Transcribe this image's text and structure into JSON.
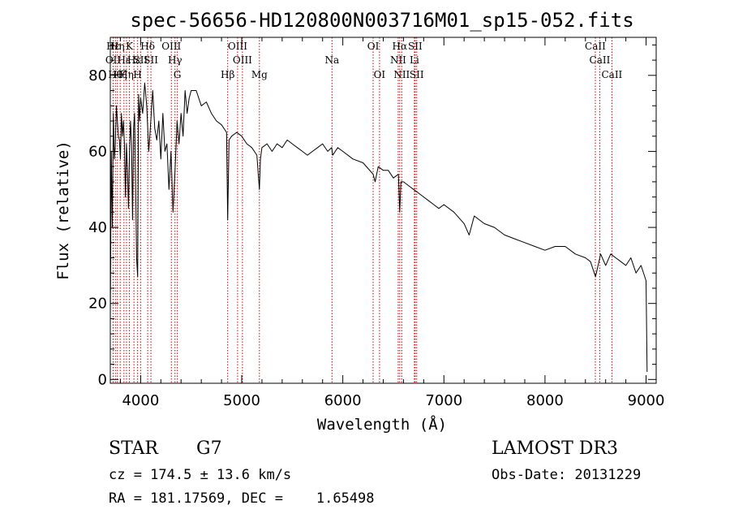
{
  "chart_data": {
    "type": "line",
    "title": "spec-56656-HD120800N003716M01_sp15-052.fits",
    "xlabel": "Wavelength (Å)",
    "ylabel": "Flux (relative)",
    "xlim": [
      3700,
      9100
    ],
    "ylim": [
      -1,
      90
    ],
    "x_ticks": [
      4000,
      5000,
      6000,
      7000,
      8000,
      9000
    ],
    "y_ticks": [
      0,
      20,
      40,
      60,
      80
    ],
    "x_minor_step": 200,
    "y_minor_step": 4,
    "grid": false,
    "series": [
      {
        "name": "flux",
        "x": [
          3700,
          3710,
          3720,
          3730,
          3740,
          3750,
          3760,
          3770,
          3780,
          3790,
          3800,
          3810,
          3820,
          3830,
          3840,
          3850,
          3860,
          3870,
          3880,
          3890,
          3900,
          3910,
          3920,
          3930,
          3940,
          3950,
          3960,
          3970,
          3980,
          3990,
          4000,
          4020,
          4040,
          4060,
          4080,
          4100,
          4120,
          4140,
          4160,
          4180,
          4200,
          4220,
          4240,
          4260,
          4280,
          4300,
          4320,
          4340,
          4360,
          4380,
          4400,
          4420,
          4440,
          4460,
          4480,
          4500,
          4550,
          4600,
          4650,
          4700,
          4750,
          4800,
          4850,
          4861,
          4875,
          4900,
          4950,
          5000,
          5050,
          5100,
          5150,
          5175,
          5185,
          5200,
          5250,
          5300,
          5350,
          5400,
          5450,
          5500,
          5550,
          5600,
          5650,
          5700,
          5750,
          5800,
          5850,
          5890,
          5900,
          5950,
          6000,
          6100,
          6200,
          6300,
          6320,
          6350,
          6400,
          6450,
          6500,
          6550,
          6563,
          6575,
          6600,
          6650,
          6700,
          6750,
          6800,
          6850,
          6900,
          6950,
          7000,
          7100,
          7200,
          7250,
          7300,
          7400,
          7500,
          7600,
          7700,
          7800,
          7900,
          8000,
          8100,
          8200,
          8300,
          8400,
          8450,
          8500,
          8550,
          8600,
          8650,
          8700,
          8750,
          8800,
          8850,
          8900,
          8950,
          9000,
          9010
        ],
        "y": [
          15,
          60,
          40,
          70,
          58,
          62,
          72,
          68,
          64,
          63,
          58,
          70,
          64,
          68,
          62,
          48,
          62,
          55,
          45,
          60,
          68,
          62,
          42,
          66,
          70,
          52,
          32,
          27,
          75,
          68,
          74,
          70,
          78,
          72,
          60,
          68,
          76,
          66,
          63,
          68,
          58,
          70,
          60,
          62,
          50,
          60,
          44,
          55,
          68,
          62,
          70,
          64,
          76,
          70,
          74,
          76,
          76,
          72,
          73,
          70,
          68,
          67,
          65,
          42,
          63,
          64,
          65,
          64,
          62,
          61,
          59,
          50,
          58,
          61,
          62,
          60,
          62,
          61,
          63,
          62,
          61,
          60,
          59,
          60,
          61,
          62,
          60,
          61,
          59,
          61,
          60,
          58,
          57,
          54,
          52,
          56,
          55,
          55,
          53,
          54,
          44,
          52,
          52,
          51,
          50,
          49,
          48,
          47,
          46,
          45,
          46,
          44,
          41,
          38,
          43,
          41,
          40,
          38,
          37,
          36,
          35,
          34,
          35,
          35,
          33,
          32,
          31,
          27,
          33,
          30,
          33,
          32,
          31,
          30,
          32,
          28,
          30,
          26,
          2
        ]
      }
    ],
    "spectral_lines": [
      {
        "label": "Hε",
        "wavelength": 3728,
        "row": 1
      },
      {
        "label": "OII",
        "wavelength": 3728,
        "row": 2
      },
      {
        "label": "Hθ",
        "wavelength": 3750,
        "row": 3
      },
      {
        "label": "Hη",
        "wavelength": 3770,
        "row": 1
      },
      {
        "label": "Hζ",
        "wavelength": 3798,
        "row": 3
      },
      {
        "label": "Hε",
        "wavelength": 3835,
        "row": 2
      },
      {
        "label": "Hη",
        "wavelength": 3860,
        "row": 3
      },
      {
        "label": "K",
        "wavelength": 3889,
        "row": 1
      },
      {
        "label": "Hε",
        "wavelength": 3934,
        "row": 2
      },
      {
        "label": "H",
        "wavelength": 3970,
        "row": 3
      },
      {
        "label": "SII",
        "wavelength": 4000,
        "row": 2
      },
      {
        "label": "Hδ",
        "wavelength": 4070,
        "row": 1
      },
      {
        "label": "SII",
        "wavelength": 4102,
        "row": 2
      },
      {
        "label": "OIII",
        "wavelength": 4304,
        "row": 1
      },
      {
        "label": "Hγ",
        "wavelength": 4340,
        "row": 2
      },
      {
        "label": "G",
        "wavelength": 4363,
        "row": 3
      },
      {
        "label": "Hβ",
        "wavelength": 4861,
        "row": 3
      },
      {
        "label": "OIII",
        "wavelength": 4959,
        "row": 1
      },
      {
        "label": "OIII",
        "wavelength": 5007,
        "row": 2
      },
      {
        "label": "Mg",
        "wavelength": 5175,
        "row": 3
      },
      {
        "label": "Na",
        "wavelength": 5893,
        "row": 2
      },
      {
        "label": "OI",
        "wavelength": 6300,
        "row": 1
      },
      {
        "label": "OI",
        "wavelength": 6363,
        "row": 3
      },
      {
        "label": "NII",
        "wavelength": 6548,
        "row": 2
      },
      {
        "label": "Hα",
        "wavelength": 6563,
        "row": 1
      },
      {
        "label": "NII",
        "wavelength": 6583,
        "row": 3
      },
      {
        "label": "SII",
        "wavelength": 6716,
        "row": 1
      },
      {
        "label": "Li",
        "wavelength": 6708,
        "row": 2
      },
      {
        "label": "SII",
        "wavelength": 6731,
        "row": 3
      },
      {
        "label": "CaII",
        "wavelength": 8498,
        "row": 1
      },
      {
        "label": "CaII",
        "wavelength": 8542,
        "row": 2
      },
      {
        "label": "CaII",
        "wavelength": 8662,
        "row": 3
      }
    ],
    "annotations": {
      "object_type": "STAR",
      "subclass": "G7",
      "survey": "LAMOST DR3",
      "cz_text": "cz = 174.5 ± 13.6 km/s",
      "obs_date_text": "Obs-Date: 20131229",
      "radec_text": "RA = 181.17569, DEC =    1.65498"
    }
  },
  "colors": {
    "line": "#000000",
    "marker": "#cc0000",
    "axis": "#000000",
    "background": "#ffffff"
  }
}
